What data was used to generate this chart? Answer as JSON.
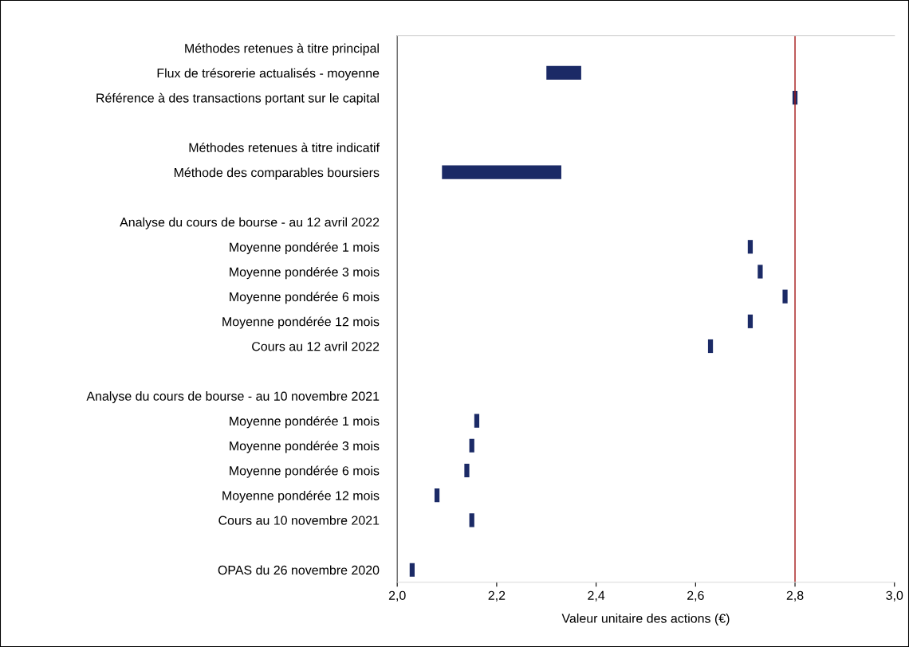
{
  "chart_data": {
    "type": "bar",
    "orientation": "horizontal",
    "xlabel": "Valeur unitaire des actions (€)",
    "categories": [
      "Méthodes retenues à titre principal",
      "Flux de trésorerie actualisés - moyenne",
      "Référence à des transactions portant sur le capital",
      null,
      "Méthodes retenues à titre indicatif",
      "Méthode des comparables boursiers",
      null,
      "Analyse du cours de bourse - au 12 avril 2022",
      "Moyenne pondérée 1 mois",
      "Moyenne pondérée 3 mois",
      "Moyenne pondérée 6 mois",
      "Moyenne pondérée 12 mois",
      "Cours au 12 avril 2022",
      null,
      "Analyse du cours de bourse - au 10 novembre 2021",
      "Moyenne pondérée 1 mois",
      "Moyenne pondérée 3 mois",
      "Moyenne pondérée 6 mois",
      "Moyenne pondérée 12 mois",
      "Cours au 10 novembre 2021",
      null,
      "OPAS du 26 novembre 2020"
    ],
    "base": [
      null,
      2.3,
      2.795,
      null,
      null,
      2.09,
      null,
      null,
      2.705,
      2.725,
      2.775,
      2.705,
      2.625,
      null,
      null,
      2.155,
      2.145,
      2.135,
      2.075,
      2.145,
      null,
      2.025
    ],
    "values": [
      null,
      0.07,
      0.01,
      null,
      null,
      0.24,
      null,
      null,
      0.01,
      0.01,
      0.01,
      0.01,
      0.01,
      null,
      null,
      0.01,
      0.01,
      0.01,
      0.01,
      0.01,
      null,
      0.01
    ],
    "color": "#1b2a66",
    "xlim": [
      2.0,
      3.0
    ],
    "xticks": [
      {
        "value": 2.0,
        "label": "2,0"
      },
      {
        "value": 2.2,
        "label": "2,2"
      },
      {
        "value": 2.4,
        "label": "2,4"
      },
      {
        "value": 2.6,
        "label": "2,6"
      },
      {
        "value": 2.8,
        "label": "2,8"
      },
      {
        "value": 3.0,
        "label": "3,0"
      }
    ],
    "ref_lines": [
      {
        "axis": "x",
        "value": 2.8,
        "color": "#a31515"
      }
    ],
    "grid": false
  }
}
